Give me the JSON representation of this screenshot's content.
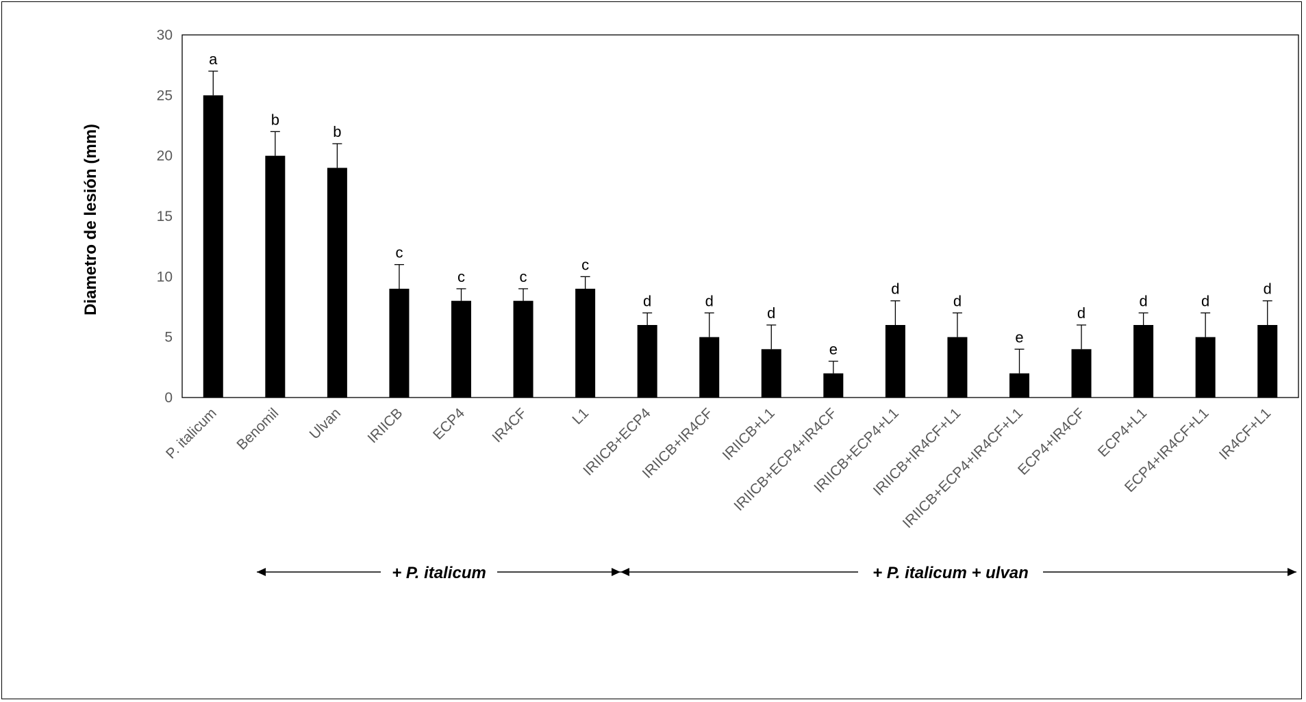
{
  "chart_data": {
    "type": "bar",
    "ylabel": "Diametro de lesión (mm)",
    "xlabel": "",
    "ylim": [
      0,
      30
    ],
    "yticks": [
      0,
      5,
      10,
      15,
      20,
      25,
      30
    ],
    "grid": false,
    "legend": "none",
    "bar_color": "#000000",
    "categories": [
      "P. italicum",
      "Benomil",
      "Ulvan",
      "IRIICB",
      "ECP4",
      "IR4CF",
      "L1",
      "IRIICB+ECP4",
      "IRIICB+IR4CF",
      "IRIICB+L1",
      "IRIICB+ECP4+IR4CF",
      "IRIICB+ECP4+L1",
      "IRIICB+IR4CF+L1",
      "IRIICB+ECP4+IR4CF+L1",
      "ECP4+IR4CF",
      "ECP4+L1",
      "ECP4+IR4CF+L1",
      "IR4CF+L1"
    ],
    "values": [
      25,
      20,
      19,
      9,
      8,
      8,
      9,
      6,
      5,
      4,
      2,
      6,
      5,
      2,
      4,
      6,
      5,
      6
    ],
    "errors": [
      2,
      2,
      2,
      2,
      1,
      1,
      1,
      1,
      2,
      2,
      1,
      2,
      2,
      2,
      2,
      1,
      2,
      2
    ],
    "letters": [
      "a",
      "b",
      "b",
      "c",
      "c",
      "c",
      "c",
      "d",
      "d",
      "d",
      "e",
      "d",
      "d",
      "e",
      "d",
      "d",
      "d",
      "d"
    ],
    "groups": [
      {
        "label": "+ P. italicum",
        "from_category": 1,
        "to_category": 6
      },
      {
        "label": "+ P. italicum + ulvan",
        "from_category": 7,
        "to_category": 17
      }
    ]
  }
}
